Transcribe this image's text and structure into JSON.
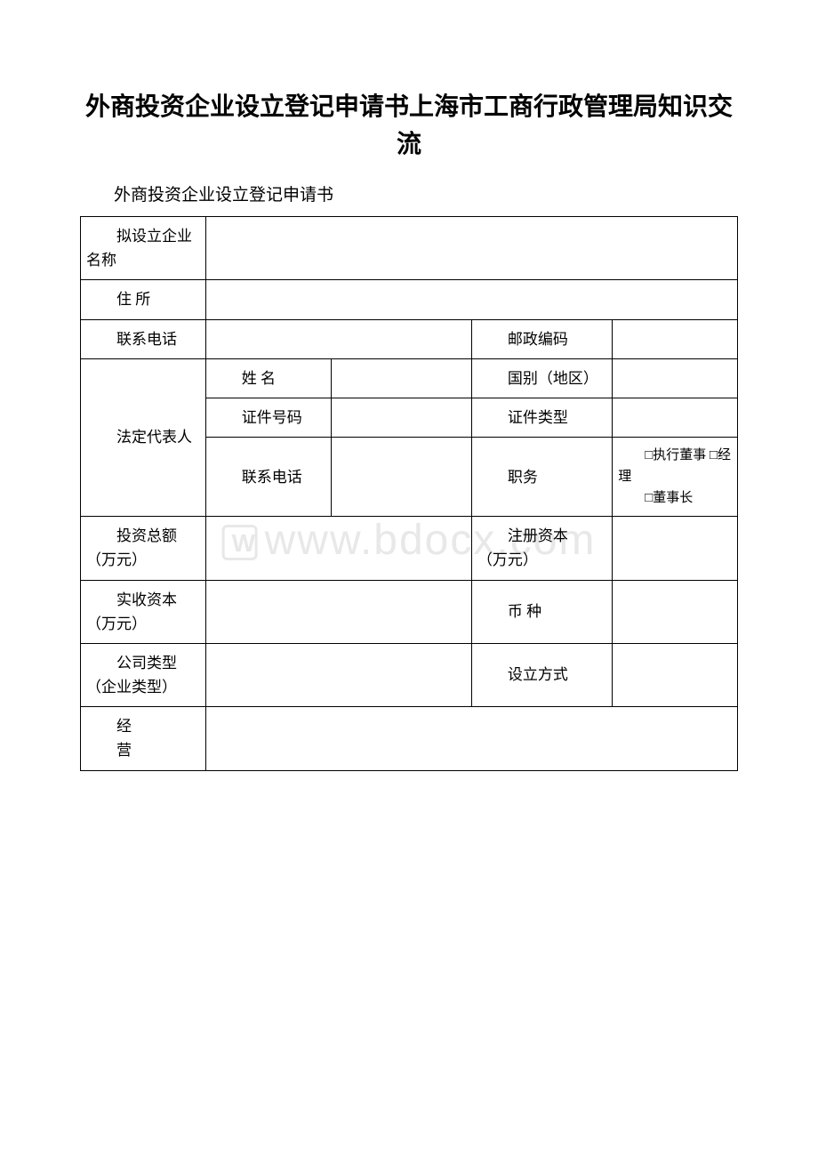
{
  "doc": {
    "title": "外商投资企业设立登记申请书上海市工商行政管理局知识交流",
    "subtitle": "外商投资企业设立登记申请书",
    "watermark": "www.bdocx.com"
  },
  "labels": {
    "proposed_name": "拟设立企业名称",
    "address": "住 所",
    "contact_phone": "联系电话",
    "postal_code": "邮政编码",
    "legal_rep": "法定代表人",
    "name": "姓 名",
    "country": "国别（地区）",
    "id_number": "证件号码",
    "id_type": "证件类型",
    "phone": "联系电话",
    "position": "职务",
    "position_exec": "□执行董事 □经理",
    "position_chairman": "□董事长",
    "total_investment": "投资总额",
    "unit_wan": "（万元）",
    "registered_capital": "注册资本",
    "paid_capital": "实收资本",
    "currency": "币 种",
    "company_type": "公司类型",
    "enterprise_type": "（企业类型）",
    "establishment_method": "设立方式",
    "business_scope_1": "经",
    "business_scope_2": "营"
  },
  "style": {
    "border_color": "#000000",
    "background": "#ffffff",
    "font_family": "SimSun",
    "title_fontsize": 28,
    "body_fontsize": 17,
    "watermark_color": "#e8e8e8"
  }
}
